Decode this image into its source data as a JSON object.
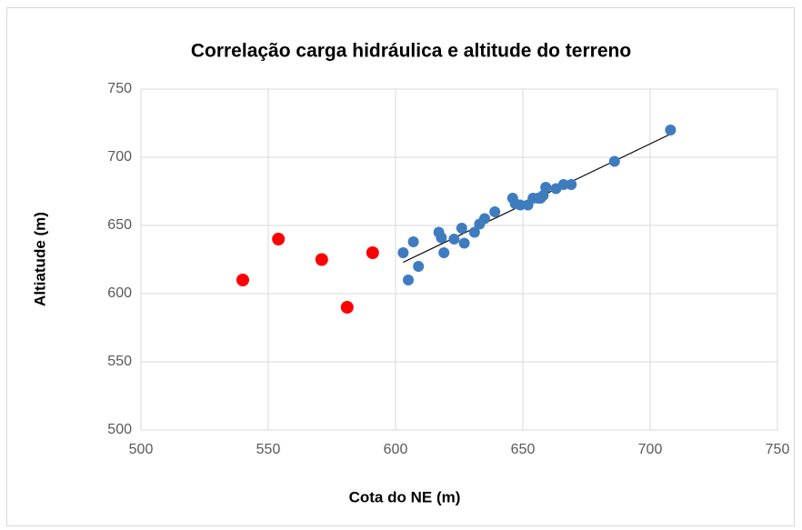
{
  "chart_data": {
    "type": "scatter",
    "title": "Correlação carga hidráulica e altitude do terreno",
    "xlabel": "Cota do NE (m)",
    "ylabel": "Altiatude (m)",
    "series": [
      {
        "color": "#ff0000",
        "x": [
          540,
          554,
          571,
          581,
          591
        ],
        "values": [
          610,
          640,
          625,
          590,
          630
        ]
      },
      {
        "color": "#3f7cbf",
        "x": [
          603,
          605,
          607,
          609,
          617,
          618,
          619,
          623,
          626,
          627,
          631,
          633,
          635,
          639,
          646,
          647,
          649,
          652,
          654,
          656,
          657,
          658,
          659,
          663,
          666,
          669,
          686,
          708
        ],
        "values": [
          630,
          610,
          638,
          620,
          645,
          641,
          630,
          640,
          648,
          637,
          645,
          651,
          655,
          660,
          670,
          666,
          665,
          665,
          670,
          670,
          670,
          672,
          678,
          677,
          680,
          680,
          697,
          720
        ]
      }
    ],
    "trendline": {
      "color": "#000000",
      "x": [
        603,
        708
      ],
      "values": [
        623,
        717
      ]
    },
    "xlim": [
      500,
      750
    ],
    "xticks": [
      500,
      550,
      600,
      650,
      700,
      750
    ],
    "ylim": [
      500,
      750
    ],
    "yticks": [
      500,
      550,
      600,
      650,
      700,
      750
    ],
    "grid": true
  }
}
